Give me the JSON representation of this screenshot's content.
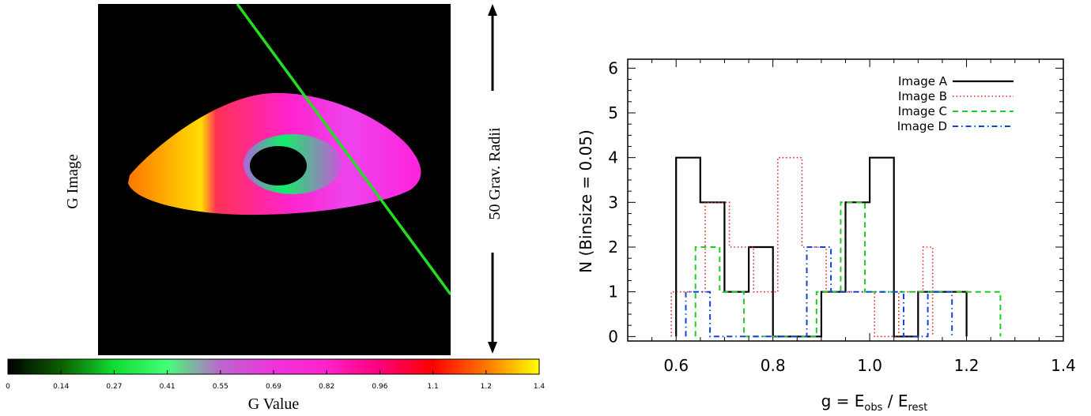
{
  "colors": {
    "image_a": "#000000",
    "image_b": "#dd2222",
    "image_c": "#22cc22",
    "image_d": "#1144dd",
    "cut_line": "#22dd22",
    "background_image": "#000000"
  },
  "left_panel": {
    "ylabel": "G Image",
    "scale_label": "50 Grav. Radii",
    "colorbar": {
      "label": "G Value",
      "ticks": [
        "0",
        "0.14",
        "0.27",
        "0.41",
        "0.55",
        "0.69",
        "0.82",
        "0.96",
        "1.1",
        "1.2",
        "1.4"
      ],
      "stops": [
        "#000000",
        "#0b5e00",
        "#11dd33",
        "#44ff77",
        "#bb66cc",
        "#ee33dd",
        "#ff22cc",
        "#ff0077",
        "#ff0000",
        "#ff7700",
        "#ffff00"
      ]
    }
  },
  "chart_data": {
    "type": "histogram",
    "xlabel_base": "g = E",
    "xlabel_sub1": "obs",
    "xlabel_mid": " / E",
    "xlabel_sub2": "rest",
    "ylabel": "N (Binsize = 0.05)",
    "xlim": [
      0.5,
      1.4
    ],
    "ylim": [
      -0.1,
      6.2
    ],
    "x_ticks": [
      "0.6",
      "0.8",
      "1.0",
      "1.2",
      "1.4"
    ],
    "y_ticks": [
      "0",
      "1",
      "2",
      "3",
      "4",
      "5",
      "6"
    ],
    "grid": false,
    "legend_position": "top-right",
    "series": [
      {
        "name": "Image A",
        "style": "solid",
        "bins": [
          [
            0.6,
            0.65,
            4
          ],
          [
            0.65,
            0.7,
            3
          ],
          [
            0.7,
            0.75,
            1
          ],
          [
            0.75,
            0.8,
            2
          ],
          [
            0.8,
            0.85,
            0
          ],
          [
            0.85,
            0.9,
            0
          ],
          [
            0.9,
            0.95,
            1
          ],
          [
            0.95,
            1.0,
            3
          ],
          [
            1.0,
            1.05,
            4
          ],
          [
            1.05,
            1.1,
            0
          ],
          [
            1.1,
            1.15,
            1
          ],
          [
            1.15,
            1.2,
            1
          ]
        ]
      },
      {
        "name": "Image B",
        "style": "dotted",
        "bins": [
          [
            0.59,
            0.66,
            1
          ],
          [
            0.66,
            0.71,
            3
          ],
          [
            0.71,
            0.76,
            2
          ],
          [
            0.76,
            0.81,
            1
          ],
          [
            0.81,
            0.86,
            4
          ],
          [
            0.86,
            0.91,
            2
          ],
          [
            0.91,
            0.96,
            1
          ],
          [
            0.96,
            1.01,
            1
          ],
          [
            1.01,
            1.06,
            0
          ],
          [
            1.06,
            1.11,
            1
          ],
          [
            1.11,
            1.13,
            2
          ]
        ]
      },
      {
        "name": "Image C",
        "style": "dashed",
        "bins": [
          [
            0.64,
            0.69,
            2
          ],
          [
            0.69,
            0.74,
            1
          ],
          [
            0.74,
            0.79,
            0
          ],
          [
            0.79,
            0.84,
            0
          ],
          [
            0.84,
            0.89,
            0
          ],
          [
            0.89,
            0.94,
            1
          ],
          [
            0.94,
            0.99,
            3
          ],
          [
            0.99,
            1.04,
            1
          ],
          [
            1.04,
            1.09,
            1
          ],
          [
            1.09,
            1.14,
            1
          ],
          [
            1.14,
            1.19,
            1
          ],
          [
            1.19,
            1.27,
            1
          ]
        ]
      },
      {
        "name": "Image D",
        "style": "dashdot",
        "bins": [
          [
            0.62,
            0.67,
            1
          ],
          [
            0.67,
            0.72,
            0
          ],
          [
            0.72,
            0.77,
            0
          ],
          [
            0.77,
            0.82,
            0
          ],
          [
            0.82,
            0.87,
            0
          ],
          [
            0.87,
            0.92,
            2
          ],
          [
            0.92,
            0.97,
            1
          ],
          [
            0.97,
            1.02,
            1
          ],
          [
            1.02,
            1.07,
            1
          ],
          [
            1.07,
            1.12,
            0
          ],
          [
            1.12,
            1.17,
            1
          ]
        ]
      }
    ]
  }
}
